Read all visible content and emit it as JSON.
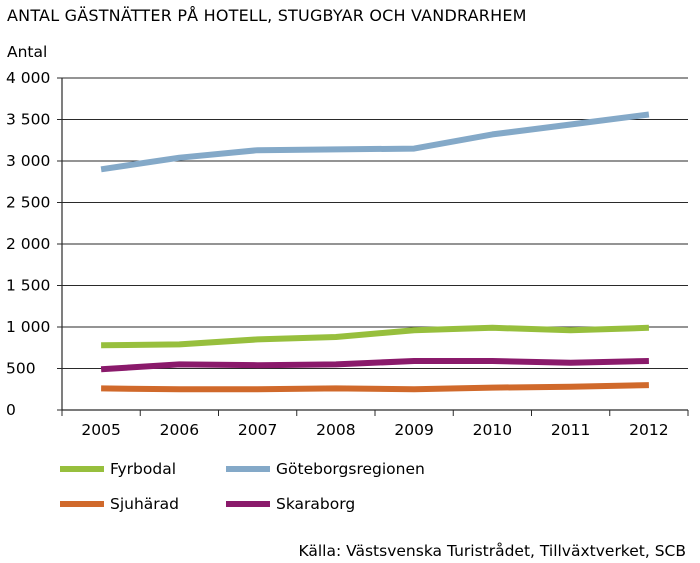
{
  "chart_data": {
    "type": "line",
    "title": "ANTAL GÄSTNÄTTER PÅ HOTELL, STUGBYAR OCH VANDRARHEM",
    "ylabel": "Antal",
    "xlabel": "",
    "source": "Källa: Västsvenska Turistrådet, Tillväxtverket, SCB",
    "x": [
      "2005",
      "2006",
      "2007",
      "2008",
      "2009",
      "2010",
      "2011",
      "2012"
    ],
    "ylim": [
      0,
      4000
    ],
    "yticks": [
      0,
      500,
      1000,
      1500,
      2000,
      2500,
      3000,
      3500,
      4000
    ],
    "ytick_labels": [
      "0",
      "500",
      "1 000",
      "1 500",
      "2 000",
      "2 500",
      "3 000",
      "3 500",
      "4 000"
    ],
    "grid": "horizontal",
    "legend_position": "bottom",
    "series": [
      {
        "name": "Fyrbodal",
        "color": "#97bf3d",
        "values": [
          780,
          790,
          850,
          880,
          960,
          990,
          960,
          990
        ]
      },
      {
        "name": "Göteborgsregionen",
        "color": "#84a9c8",
        "values": [
          2900,
          3040,
          3130,
          3140,
          3150,
          3320,
          3440,
          3560
        ]
      },
      {
        "name": "Sjuhärad",
        "color": "#d0692b",
        "values": [
          260,
          250,
          250,
          260,
          250,
          270,
          280,
          300
        ]
      },
      {
        "name": "Skaraborg",
        "color": "#8a1a6b",
        "values": [
          490,
          550,
          540,
          550,
          590,
          590,
          570,
          590
        ]
      }
    ]
  }
}
